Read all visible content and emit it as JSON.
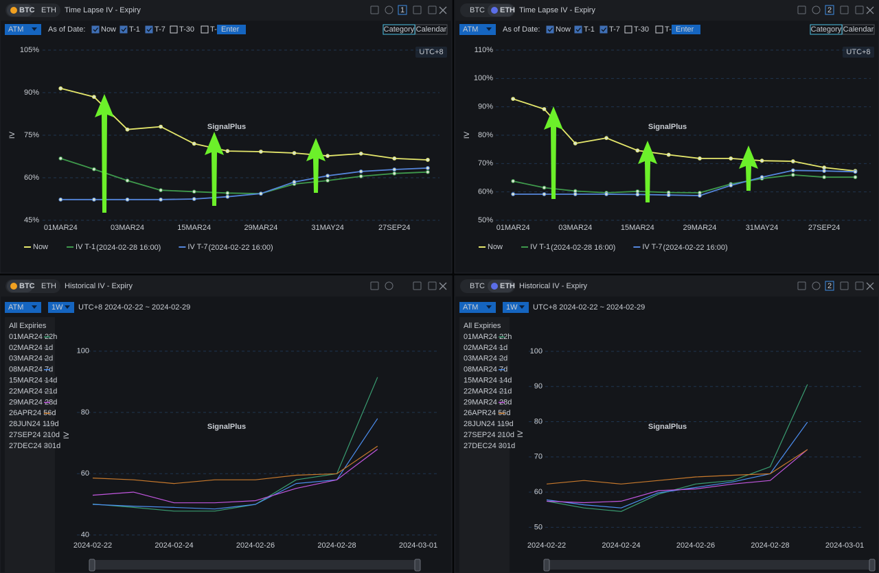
{
  "panels": [
    {
      "tabs": [
        "BTC",
        "ETH"
      ],
      "active_tab": 0,
      "title": "Time Lapse IV - Expiry",
      "badge": "1",
      "controls": {
        "mode": "ATM",
        "as_of_label": "As of Date:",
        "options": [
          {
            "label": "Now",
            "checked": true
          },
          {
            "label": "T-1",
            "checked": true
          },
          {
            "label": "T-7",
            "checked": true
          },
          {
            "label": "T-30",
            "checked": false
          },
          {
            "label": "T-",
            "checked": false
          }
        ],
        "input_placeholder": "Enter",
        "views": [
          "Category",
          "Calendar"
        ],
        "active_view": 0
      },
      "timezone": "UTC+8",
      "watermark": "SignalPlus"
    },
    {
      "tabs": [
        "BTC",
        "ETH"
      ],
      "active_tab": 1,
      "title": "Time Lapse IV - Expiry",
      "badge": "2",
      "controls": {
        "mode": "ATM",
        "as_of_label": "As of Date:",
        "options": [
          {
            "label": "Now",
            "checked": true
          },
          {
            "label": "T-1",
            "checked": true
          },
          {
            "label": "T-7",
            "checked": true
          },
          {
            "label": "T-30",
            "checked": false
          },
          {
            "label": "T-",
            "checked": false
          }
        ],
        "input_placeholder": "Enter",
        "views": [
          "Category",
          "Calendar"
        ],
        "active_view": 0
      },
      "timezone": "UTC+8",
      "watermark": "SignalPlus"
    },
    {
      "tabs": [
        "BTC",
        "ETH"
      ],
      "active_tab": 0,
      "title": "Historical IV - Expiry",
      "controls": {
        "mode": "ATM",
        "period": "1W",
        "range": "UTC+8 2024-02-22 ~ 2024-02-29"
      },
      "watermark": "SignalPlus"
    },
    {
      "tabs": [
        "BTC",
        "ETH"
      ],
      "active_tab": 1,
      "title": "Historical IV - Expiry",
      "badge": "2",
      "controls": {
        "mode": "ATM",
        "period": "1W",
        "range": "UTC+8 2024-02-22 ~ 2024-02-29"
      },
      "watermark": "SignalPlus"
    }
  ],
  "chart_data": [
    {
      "type": "line",
      "ylabel": "IV",
      "markers": true,
      "categories": [
        "01MAR24",
        null,
        "03MAR24",
        null,
        "15MAR24",
        null,
        "29MAR24",
        null,
        "31MAY24",
        null,
        "27SEP24",
        null
      ],
      "ylim": [
        45,
        105
      ],
      "yticks": [
        {
          "value": 45,
          "label": "45%"
        },
        {
          "value": 60,
          "label": "60%"
        },
        {
          "value": 75,
          "label": "75%"
        },
        {
          "value": 90,
          "label": "90%"
        },
        {
          "value": 105,
          "label": "105%"
        }
      ],
      "series": [
        {
          "name": "Now",
          "color": "#e6e86c",
          "values": [
            91.5,
            88.5,
            77,
            78,
            72,
            69.4,
            69.2,
            68.7,
            67.7,
            68.5,
            66.8,
            66.3
          ]
        },
        {
          "name": "IV T-1",
          "as_of": "(2024-02-28 16:00)",
          "color": "#3f9a4c",
          "values": [
            66.8,
            63,
            59,
            55.6,
            55.1,
            54.6,
            54.4,
            57.8,
            59,
            60.5,
            61.5,
            62
          ]
        },
        {
          "name": "IV T-7",
          "as_of": "(2024-02-22 16:00)",
          "color": "#5586dc",
          "values": [
            52.3,
            52.3,
            52.3,
            52.3,
            52.5,
            53.3,
            54.4,
            58.5,
            60.7,
            62.2,
            62.9,
            63.4
          ]
        }
      ]
    },
    {
      "type": "line",
      "ylabel": "IV",
      "markers": true,
      "categories": [
        "01MAR24",
        null,
        "03MAR24",
        null,
        "15MAR24",
        null,
        "29MAR24",
        null,
        "31MAY24",
        null,
        "27SEP24",
        null
      ],
      "ylim": [
        50,
        110
      ],
      "yticks": [
        {
          "value": 50,
          "label": "50%"
        },
        {
          "value": 60,
          "label": "60%"
        },
        {
          "value": 70,
          "label": "70%"
        },
        {
          "value": 80,
          "label": "80%"
        },
        {
          "value": 90,
          "label": "90%"
        },
        {
          "value": 100,
          "label": "100%"
        },
        {
          "value": 110,
          "label": "110%"
        }
      ],
      "series": [
        {
          "name": "Now",
          "color": "#e6e86c",
          "values": [
            92.8,
            89.2,
            77.1,
            79,
            74.6,
            73.1,
            71.8,
            71.8,
            71,
            70.8,
            68.6,
            67.4
          ]
        },
        {
          "name": "IV T-1",
          "as_of": "(2024-02-28 16:00)",
          "color": "#3f9a4c",
          "values": [
            63.8,
            61.5,
            60.3,
            59.7,
            60.2,
            59.8,
            59.7,
            62.8,
            64.7,
            66,
            65.2,
            65.2
          ]
        },
        {
          "name": "IV T-7",
          "as_of": "(2024-02-22 16:00)",
          "color": "#5586dc",
          "values": [
            59.2,
            59.2,
            59.2,
            59.2,
            59.1,
            58.9,
            58.7,
            62.3,
            65.2,
            67.6,
            67.4,
            67.1
          ]
        }
      ]
    },
    {
      "type": "line",
      "ylabel": "IV",
      "legend_title": "All Expiries",
      "x": [
        "2024-02-22",
        "2024-02-23",
        "2024-02-24",
        "2024-02-25",
        "2024-02-26",
        "2024-02-27",
        "2024-02-28",
        "2024-02-29"
      ],
      "xlim": [
        "2024-02-22",
        "2024-03-01"
      ],
      "xticks": [
        "2024-02-22",
        "2024-02-24",
        "2024-02-26",
        "2024-02-28",
        "2024-03-01"
      ],
      "ylim": [
        37,
        108
      ],
      "yticks": [
        40,
        60,
        80,
        100
      ],
      "series": [
        {
          "name": "01MAR24 22h",
          "color": "#3a9e72",
          "values": [
            50.1,
            49,
            47.8,
            47.8,
            50,
            58,
            60,
            91.5
          ]
        },
        {
          "name": "02MAR24 1d",
          "color": "#5b6068"
        },
        {
          "name": "03MAR24 2d",
          "color": "#5b6068"
        },
        {
          "name": "08MAR24 7d",
          "color": "#4c8ef0",
          "values": [
            50,
            49.4,
            49,
            48.5,
            50,
            56.8,
            58,
            78
          ]
        },
        {
          "name": "15MAR24 14d",
          "color": "#5b6068"
        },
        {
          "name": "22MAR24 21d",
          "color": "#5b6068"
        },
        {
          "name": "29MAR24 28d",
          "color": "#c257e0",
          "values": [
            53,
            54,
            50.5,
            50.5,
            51.2,
            55.2,
            58,
            68
          ]
        },
        {
          "name": "26APR24 56d",
          "color": "#c97a2c",
          "values": [
            58.6,
            58,
            56.8,
            58,
            58,
            59.5,
            60,
            69
          ]
        },
        {
          "name": "28JUN24 119d",
          "color": "#5b6068"
        },
        {
          "name": "27SEP24 210d",
          "color": "#5b6068"
        },
        {
          "name": "27DEC24 301d",
          "color": "#5b6068"
        }
      ]
    },
    {
      "type": "line",
      "ylabel": "IV",
      "legend_title": "All Expiries",
      "x": [
        "2024-02-22",
        "2024-02-23",
        "2024-02-24",
        "2024-02-25",
        "2024-02-26",
        "2024-02-27",
        "2024-02-28",
        "2024-02-29"
      ],
      "xlim": [
        "2024-02-22",
        "2024-03-01"
      ],
      "xticks": [
        "2024-02-22",
        "2024-02-24",
        "2024-02-26",
        "2024-02-28",
        "2024-03-01"
      ],
      "ylim": [
        45,
        108
      ],
      "yticks": [
        50,
        60,
        70,
        80,
        90,
        100
      ],
      "series": [
        {
          "name": "01MAR24 22h",
          "color": "#3a9e72",
          "values": [
            57.4,
            55.5,
            54.5,
            59.4,
            62.3,
            63.3,
            67.2,
            90.6
          ]
        },
        {
          "name": "02MAR24 1d",
          "color": "#5b6068"
        },
        {
          "name": "03MAR24 2d",
          "color": "#5b6068"
        },
        {
          "name": "08MAR24 7d",
          "color": "#4c8ef0",
          "values": [
            57.8,
            56.4,
            55.5,
            59.8,
            61.3,
            62.9,
            65.2,
            79.9
          ]
        },
        {
          "name": "15MAR24 14d",
          "color": "#5b6068"
        },
        {
          "name": "22MAR24 21d",
          "color": "#5b6068"
        },
        {
          "name": "29MAR24 28d",
          "color": "#c257e0",
          "values": [
            57.4,
            57,
            57.4,
            60.4,
            60.9,
            62.3,
            63.3,
            72.1
          ]
        },
        {
          "name": "26APR24 56d",
          "color": "#c97a2c",
          "values": [
            62.3,
            63.3,
            62.3,
            63.3,
            64.3,
            64.8,
            65.2,
            72.1
          ]
        },
        {
          "name": "28JUN24 119d",
          "color": "#5b6068"
        },
        {
          "name": "27SEP24 210d",
          "color": "#5b6068"
        },
        {
          "name": "27DEC24 301d",
          "color": "#5b6068"
        }
      ]
    }
  ]
}
